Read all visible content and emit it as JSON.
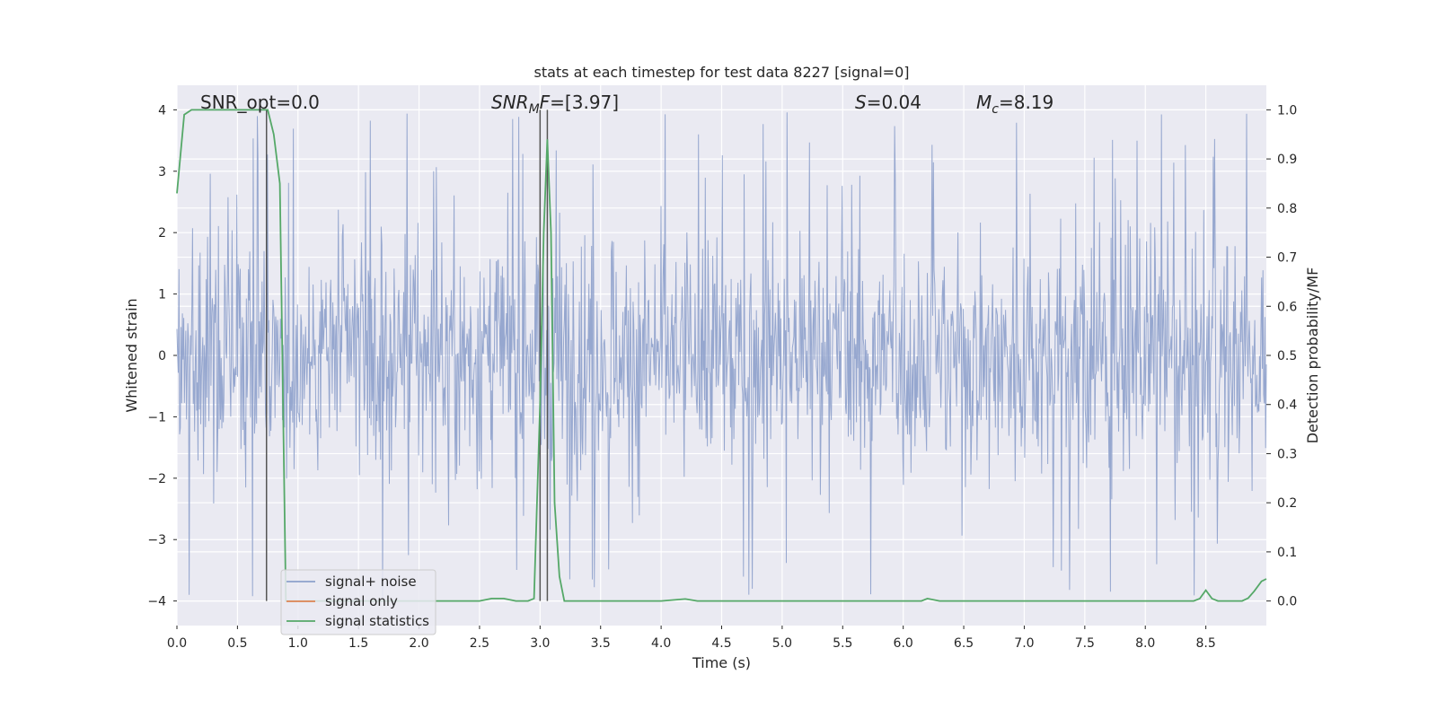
{
  "chart_data": {
    "type": "line",
    "title": "stats at each timestep for test data 8227 [signal=0]",
    "xlabel": "Time (s)",
    "ylabel": "Whitened strain",
    "ylabel_right": "Detection probability/MF",
    "xlim": [
      0.0,
      9.0
    ],
    "ylim": [
      -4.4,
      4.4
    ],
    "ylim_right": [
      -0.05,
      1.05
    ],
    "x_ticks": [
      "0.0",
      "0.5",
      "1.0",
      "1.5",
      "2.0",
      "2.5",
      "3.0",
      "3.5",
      "4.0",
      "4.5",
      "5.0",
      "5.5",
      "6.0",
      "6.5",
      "7.0",
      "7.5",
      "8.0",
      "8.5"
    ],
    "y_ticks_left": [
      "4",
      "3",
      "2",
      "1",
      "0",
      "−1",
      "−2",
      "−3",
      "−4"
    ],
    "y_ticks_right": [
      "1.0",
      "0.9",
      "0.8",
      "0.7",
      "0.6",
      "0.5",
      "0.4",
      "0.3",
      "0.2",
      "0.1",
      "0.0"
    ],
    "grid": true,
    "legend_position": "lower-left",
    "annotations": {
      "snr_opt": "SNR_opt=0.0",
      "snr_mf_main": "SNR",
      "snr_mf_sub": "M",
      "snr_mf_rest_italic": "F",
      "snr_mf_value": "=[3.97]",
      "s_label": "S",
      "s_value": "=0.04",
      "mc_main": "M",
      "mc_sub": "c",
      "mc_value": "=8.19"
    },
    "series": [
      {
        "name": "signal+ noise",
        "color": "#8da0cb",
        "description_envelope": {
          "typical_abs": 1.6,
          "peak_abs": 4.0
        }
      },
      {
        "name": "signal only",
        "color": "#dd8452",
        "values": []
      },
      {
        "name": "signal statistics",
        "color": "#55a868",
        "axis": "right",
        "x": [
          0.0,
          0.06,
          0.12,
          0.3,
          0.5,
          0.7,
          0.75,
          0.8,
          0.85,
          0.9,
          1.0,
          2.0,
          2.5,
          2.6,
          2.7,
          2.8,
          2.9,
          2.95,
          3.0,
          3.03,
          3.06,
          3.09,
          3.12,
          3.16,
          3.2,
          3.5,
          4.0,
          4.2,
          4.3,
          5.0,
          6.0,
          6.15,
          6.2,
          6.3,
          7.0,
          8.0,
          8.4,
          8.45,
          8.5,
          8.55,
          8.6,
          8.7,
          8.8,
          8.85,
          8.9,
          8.96,
          9.0
        ],
        "values": [
          0.83,
          0.99,
          1.0,
          1.0,
          1.0,
          1.0,
          1.0,
          0.95,
          0.85,
          0.0,
          0.0,
          0.0,
          0.0,
          0.005,
          0.005,
          0.0,
          0.0,
          0.005,
          0.4,
          0.75,
          0.94,
          0.75,
          0.2,
          0.05,
          0.0,
          0.0,
          0.0,
          0.004,
          0.0,
          0.0,
          0.0,
          0.0,
          0.005,
          0.0,
          0.0,
          0.0,
          0.0,
          0.005,
          0.022,
          0.005,
          0.0,
          0.0,
          0.0,
          0.006,
          0.02,
          0.04,
          0.045
        ]
      }
    ],
    "vertical_markers": [
      0.74,
      3.0,
      3.06
    ]
  }
}
